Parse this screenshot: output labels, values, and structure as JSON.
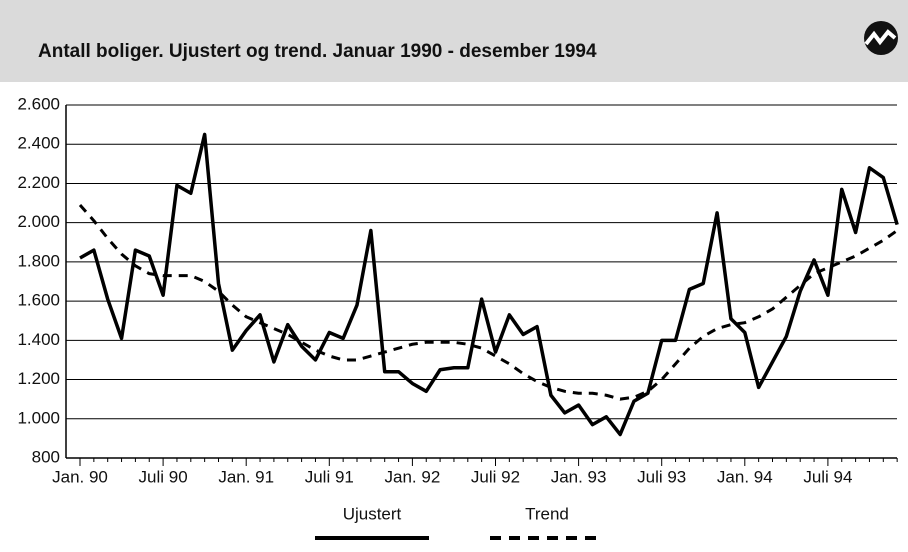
{
  "chart_data": {
    "type": "line",
    "title": "Antall boliger. Ujustert og trend. Januar 1990 - desember 1994",
    "categories": [
      "Jan. 90",
      null,
      null,
      null,
      null,
      null,
      "Juli 90",
      null,
      null,
      null,
      null,
      null,
      "Jan. 91",
      null,
      null,
      null,
      null,
      null,
      "Juli 91",
      null,
      null,
      null,
      null,
      null,
      "Jan. 92",
      null,
      null,
      null,
      null,
      null,
      "Juli 92",
      null,
      null,
      null,
      null,
      null,
      "Jan. 93",
      null,
      null,
      null,
      null,
      null,
      "Juli 93",
      null,
      null,
      null,
      null,
      null,
      "Jan. 94",
      null,
      null,
      null,
      null,
      null,
      "Juli 94",
      null,
      null,
      null,
      null,
      null
    ],
    "series": [
      {
        "name": "Ujustert",
        "color": "#000000",
        "dashed": false,
        "values": [
          1820,
          1860,
          1610,
          1410,
          1860,
          1830,
          1630,
          2190,
          2150,
          2450,
          1690,
          1350,
          1450,
          1530,
          1290,
          1480,
          1370,
          1300,
          1440,
          1410,
          1580,
          1960,
          1240,
          1240,
          1180,
          1140,
          1250,
          1260,
          1260,
          1610,
          1340,
          1530,
          1430,
          1470,
          1120,
          1030,
          1070,
          970,
          1010,
          920,
          1090,
          1130,
          1400,
          1400,
          1660,
          1690,
          2050,
          1510,
          1440,
          1160,
          1290,
          1420,
          1650,
          1810,
          1630,
          2170,
          1950,
          2280,
          2230,
          1990
        ]
      },
      {
        "name": "Trend",
        "color": "#000000",
        "dashed": true,
        "values": [
          2090,
          2010,
          1920,
          1840,
          1780,
          1740,
          1730,
          1730,
          1730,
          1700,
          1650,
          1580,
          1520,
          1490,
          1460,
          1430,
          1390,
          1350,
          1320,
          1300,
          1300,
          1320,
          1340,
          1360,
          1380,
          1390,
          1390,
          1390,
          1380,
          1360,
          1320,
          1280,
          1230,
          1190,
          1160,
          1140,
          1130,
          1130,
          1120,
          1100,
          1110,
          1140,
          1200,
          1280,
          1360,
          1420,
          1460,
          1480,
          1490,
          1520,
          1560,
          1620,
          1680,
          1740,
          1770,
          1800,
          1830,
          1870,
          1910,
          1960
        ]
      }
    ],
    "ylim": [
      800,
      2600
    ],
    "yticks": [
      800,
      {
        "value": 1000,
        "label": "1.000"
      },
      {
        "value": 1200,
        "label": "1.200"
      },
      {
        "value": 1400,
        "label": "1.400"
      },
      {
        "value": 1600,
        "label": "1.600"
      },
      {
        "value": 1800,
        "label": "1.800"
      },
      {
        "value": 2000,
        "label": "2.000"
      },
      {
        "value": 2200,
        "label": "2.200"
      },
      {
        "value": 2400,
        "label": "2.400"
      },
      {
        "value": 2600,
        "label": "2.600"
      }
    ],
    "grid": true,
    "legend": "bottom"
  }
}
